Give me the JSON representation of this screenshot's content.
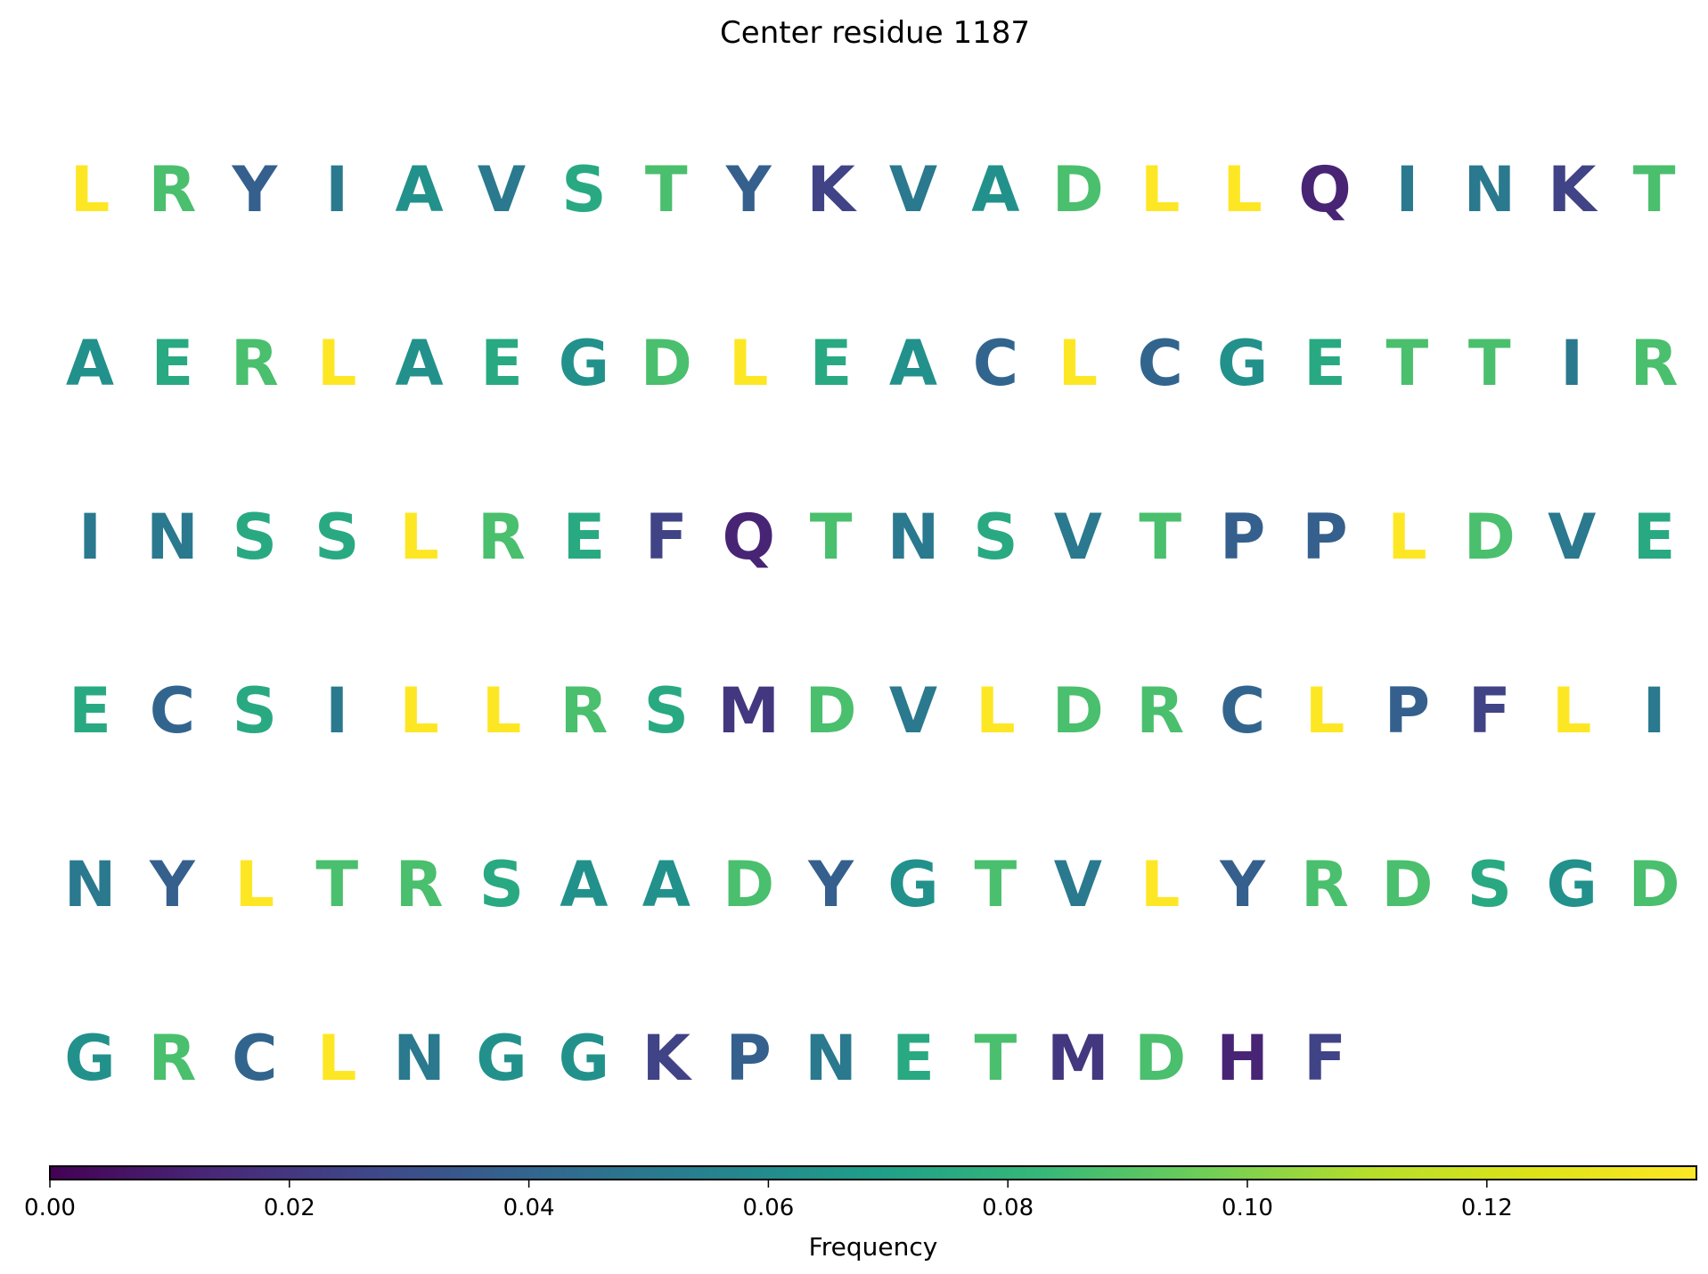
{
  "chart_data": {
    "type": "heatmap",
    "title": "Center residue 1187",
    "colorbar": {
      "label": "Frequency",
      "colormap": "viridis",
      "range": [
        0,
        0.1375
      ],
      "ticks": [
        "0.00",
        "0.02",
        "0.04",
        "0.06",
        "0.08",
        "0.10",
        "0.12"
      ]
    },
    "columns_per_row": 20,
    "residues": [
      {
        "aa": "L",
        "freq": 0.1375
      },
      {
        "aa": "R",
        "freq": 0.0875
      },
      {
        "aa": "Y",
        "freq": 0.0375
      },
      {
        "aa": "I",
        "freq": 0.05
      },
      {
        "aa": "A",
        "freq": 0.0625
      },
      {
        "aa": "V",
        "freq": 0.05
      },
      {
        "aa": "S",
        "freq": 0.075
      },
      {
        "aa": "T",
        "freq": 0.0875
      },
      {
        "aa": "Y",
        "freq": 0.0375
      },
      {
        "aa": "K",
        "freq": 0.025
      },
      {
        "aa": "V",
        "freq": 0.05
      },
      {
        "aa": "A",
        "freq": 0.0625
      },
      {
        "aa": "D",
        "freq": 0.0875
      },
      {
        "aa": "L",
        "freq": 0.1375
      },
      {
        "aa": "L",
        "freq": 0.1375
      },
      {
        "aa": "Q",
        "freq": 0.0125
      },
      {
        "aa": "I",
        "freq": 0.05
      },
      {
        "aa": "N",
        "freq": 0.05
      },
      {
        "aa": "K",
        "freq": 0.025
      },
      {
        "aa": "T",
        "freq": 0.0875
      },
      {
        "aa": "A",
        "freq": 0.0625
      },
      {
        "aa": "E",
        "freq": 0.075
      },
      {
        "aa": "R",
        "freq": 0.0875
      },
      {
        "aa": "L",
        "freq": 0.1375
      },
      {
        "aa": "A",
        "freq": 0.0625
      },
      {
        "aa": "E",
        "freq": 0.075
      },
      {
        "aa": "G",
        "freq": 0.0625
      },
      {
        "aa": "D",
        "freq": 0.0875
      },
      {
        "aa": "L",
        "freq": 0.1375
      },
      {
        "aa": "E",
        "freq": 0.075
      },
      {
        "aa": "A",
        "freq": 0.0625
      },
      {
        "aa": "C",
        "freq": 0.04
      },
      {
        "aa": "L",
        "freq": 0.1375
      },
      {
        "aa": "C",
        "freq": 0.04
      },
      {
        "aa": "G",
        "freq": 0.0625
      },
      {
        "aa": "E",
        "freq": 0.075
      },
      {
        "aa": "T",
        "freq": 0.0875
      },
      {
        "aa": "T",
        "freq": 0.0875
      },
      {
        "aa": "I",
        "freq": 0.05
      },
      {
        "aa": "R",
        "freq": 0.0875
      },
      {
        "aa": "I",
        "freq": 0.05
      },
      {
        "aa": "N",
        "freq": 0.05
      },
      {
        "aa": "S",
        "freq": 0.075
      },
      {
        "aa": "S",
        "freq": 0.075
      },
      {
        "aa": "L",
        "freq": 0.1375
      },
      {
        "aa": "R",
        "freq": 0.0875
      },
      {
        "aa": "E",
        "freq": 0.075
      },
      {
        "aa": "F",
        "freq": 0.025
      },
      {
        "aa": "Q",
        "freq": 0.0125
      },
      {
        "aa": "T",
        "freq": 0.0875
      },
      {
        "aa": "N",
        "freq": 0.05
      },
      {
        "aa": "S",
        "freq": 0.075
      },
      {
        "aa": "V",
        "freq": 0.05
      },
      {
        "aa": "T",
        "freq": 0.0875
      },
      {
        "aa": "P",
        "freq": 0.0375
      },
      {
        "aa": "P",
        "freq": 0.0375
      },
      {
        "aa": "L",
        "freq": 0.1375
      },
      {
        "aa": "D",
        "freq": 0.0875
      },
      {
        "aa": "V",
        "freq": 0.05
      },
      {
        "aa": "E",
        "freq": 0.075
      },
      {
        "aa": "E",
        "freq": 0.075
      },
      {
        "aa": "C",
        "freq": 0.04
      },
      {
        "aa": "S",
        "freq": 0.075
      },
      {
        "aa": "I",
        "freq": 0.05
      },
      {
        "aa": "L",
        "freq": 0.1375
      },
      {
        "aa": "L",
        "freq": 0.1375
      },
      {
        "aa": "R",
        "freq": 0.0875
      },
      {
        "aa": "S",
        "freq": 0.075
      },
      {
        "aa": "M",
        "freq": 0.02
      },
      {
        "aa": "D",
        "freq": 0.0875
      },
      {
        "aa": "V",
        "freq": 0.05
      },
      {
        "aa": "L",
        "freq": 0.1375
      },
      {
        "aa": "D",
        "freq": 0.0875
      },
      {
        "aa": "R",
        "freq": 0.0875
      },
      {
        "aa": "C",
        "freq": 0.04
      },
      {
        "aa": "L",
        "freq": 0.1375
      },
      {
        "aa": "P",
        "freq": 0.0375
      },
      {
        "aa": "F",
        "freq": 0.025
      },
      {
        "aa": "L",
        "freq": 0.1375
      },
      {
        "aa": "I",
        "freq": 0.05
      },
      {
        "aa": "N",
        "freq": 0.05
      },
      {
        "aa": "Y",
        "freq": 0.0375
      },
      {
        "aa": "L",
        "freq": 0.1375
      },
      {
        "aa": "T",
        "freq": 0.0875
      },
      {
        "aa": "R",
        "freq": 0.0875
      },
      {
        "aa": "S",
        "freq": 0.075
      },
      {
        "aa": "A",
        "freq": 0.0625
      },
      {
        "aa": "A",
        "freq": 0.0625
      },
      {
        "aa": "D",
        "freq": 0.0875
      },
      {
        "aa": "Y",
        "freq": 0.0375
      },
      {
        "aa": "G",
        "freq": 0.0625
      },
      {
        "aa": "T",
        "freq": 0.0875
      },
      {
        "aa": "V",
        "freq": 0.05
      },
      {
        "aa": "L",
        "freq": 0.1375
      },
      {
        "aa": "Y",
        "freq": 0.0375
      },
      {
        "aa": "R",
        "freq": 0.0875
      },
      {
        "aa": "D",
        "freq": 0.0875
      },
      {
        "aa": "S",
        "freq": 0.075
      },
      {
        "aa": "G",
        "freq": 0.0625
      },
      {
        "aa": "D",
        "freq": 0.0875
      },
      {
        "aa": "G",
        "freq": 0.0625
      },
      {
        "aa": "R",
        "freq": 0.0875
      },
      {
        "aa": "C",
        "freq": 0.04
      },
      {
        "aa": "L",
        "freq": 0.1375
      },
      {
        "aa": "N",
        "freq": 0.05
      },
      {
        "aa": "G",
        "freq": 0.0625
      },
      {
        "aa": "G",
        "freq": 0.0625
      },
      {
        "aa": "K",
        "freq": 0.025
      },
      {
        "aa": "P",
        "freq": 0.0375
      },
      {
        "aa": "N",
        "freq": 0.05
      },
      {
        "aa": "E",
        "freq": 0.075
      },
      {
        "aa": "T",
        "freq": 0.0875
      },
      {
        "aa": "M",
        "freq": 0.02
      },
      {
        "aa": "D",
        "freq": 0.0875
      },
      {
        "aa": "H",
        "freq": 0.0125
      },
      {
        "aa": "F",
        "freq": 0.025
      }
    ]
  }
}
